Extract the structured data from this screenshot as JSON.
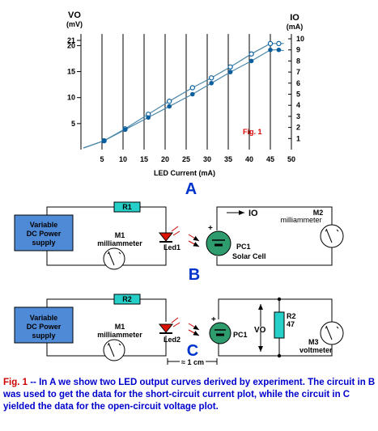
{
  "chart_data": {
    "type": "line",
    "xlabel": "LED Current (mA)",
    "x_ticks": [
      5,
      10,
      15,
      20,
      25,
      30,
      35,
      40,
      45,
      50
    ],
    "y_left_label": "VO",
    "y_left_unit": "(mV)",
    "y_left_ticks": [
      5,
      10,
      15,
      20,
      21
    ],
    "y_right_label": "IO",
    "y_right_unit": "(mA)",
    "y_right_ticks": [
      1,
      2,
      3,
      4,
      5,
      6,
      7,
      8,
      9,
      10
    ],
    "annotation": "Fig. 1",
    "series": [
      {
        "marker": "open-circle",
        "x": [
          5.5,
          10.5,
          16,
          21,
          26.5,
          31,
          35.5,
          40.5,
          45,
          47
        ],
        "y_mV": [
          1.7,
          4.0,
          6.8,
          9.3,
          11.9,
          13.8,
          15.9,
          18.4,
          20.4,
          20.4
        ]
      },
      {
        "marker": "filled-circle",
        "x": [
          5.5,
          10.5,
          16,
          21,
          26.5,
          31,
          35.5,
          40.5,
          45,
          47
        ],
        "y_mA": [
          0.8,
          1.8,
          2.9,
          3.9,
          5.0,
          6.0,
          7.0,
          8.0,
          9.0,
          9.0
        ]
      }
    ],
    "colors": {
      "line": "#4a86a8",
      "marker": "#0b5f9e",
      "grid": "#000000"
    }
  },
  "labels": {
    "panel_a": "A",
    "panel_b": "B",
    "panel_c": "C",
    "psu_line1": "Variable",
    "psu_line2": "DC Power",
    "psu_line3": "supply",
    "r1": "R1",
    "r2": "R2",
    "m1": "M1",
    "milliammeter": "milliammeter",
    "led1": "Led1",
    "led2": "Led2",
    "io": "IO",
    "m2": "M2",
    "pc1": "PC1",
    "solar_cell": "Solar Cell",
    "plus": "+",
    "vo": "VO",
    "r2_name": "R2",
    "r2_value": "47",
    "m3": "M3",
    "voltmeter": "voltmeter",
    "spacing": "≈ 1 cm"
  },
  "caption": {
    "lead": "Fig. 1",
    "text": " -- In A we show two LED output curves derived by experiment. The circuit in B was used to get the data for the short-circuit current plot, while the circuit in C yielded the data for the open-circuit voltage plot."
  },
  "colors": {
    "psu_fill": "#4f8ad6",
    "resistor_fill": "#26d0c8",
    "cell_fill": "#2f9c6e",
    "panel_letter": "#0033cc",
    "fig_label": "#dd0000"
  }
}
